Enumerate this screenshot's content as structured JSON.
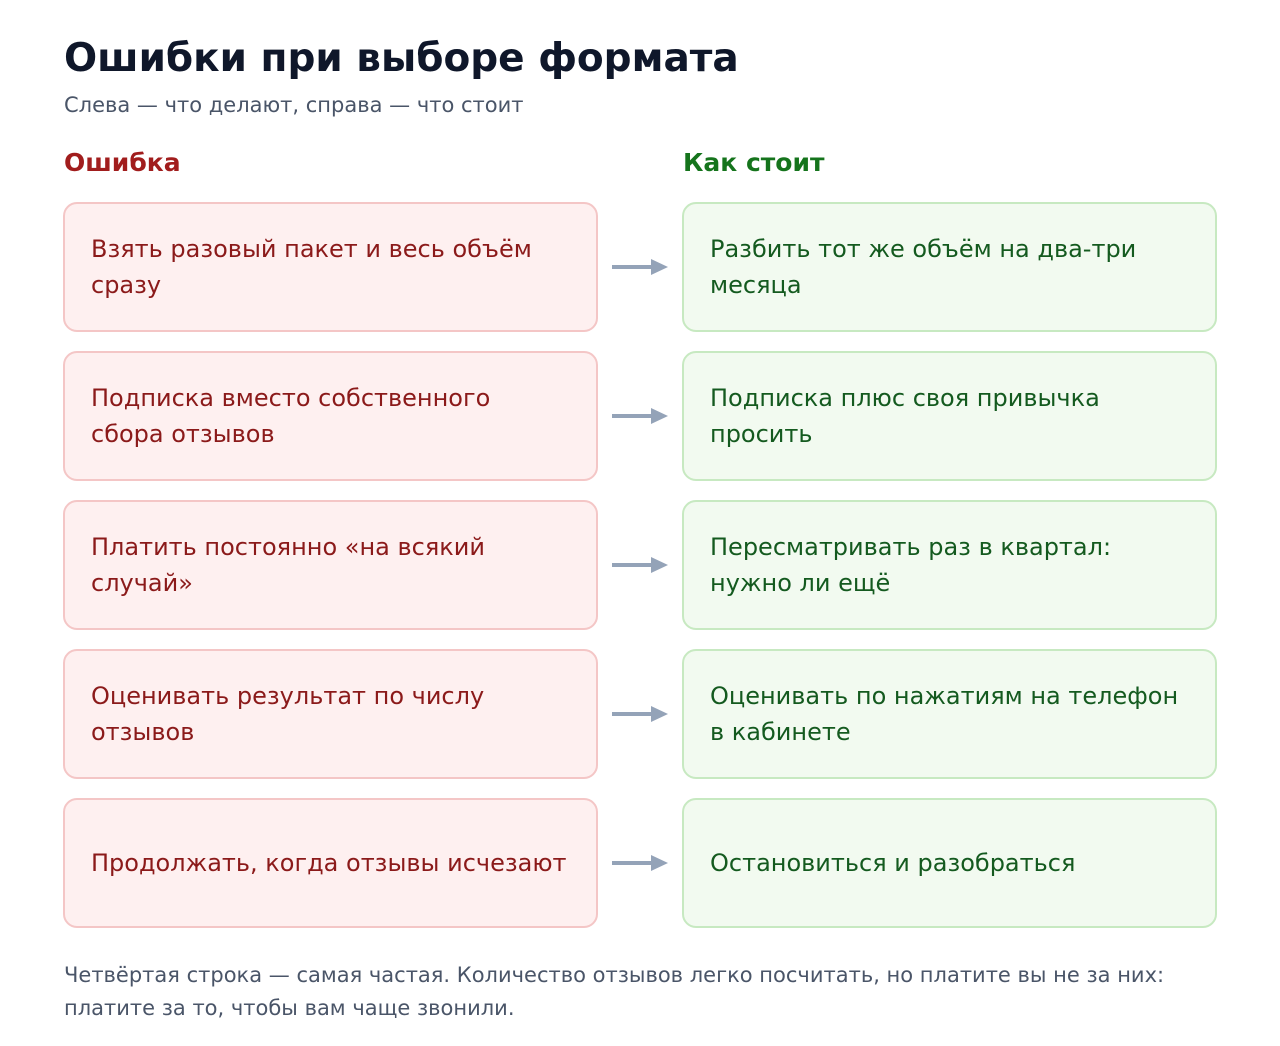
{
  "header": {
    "title": "Ошибки при выборе формата",
    "subtitle": "Слева — что делают, справа — что стоит"
  },
  "columns": {
    "mistake_heading": "Ошибка",
    "fix_heading": "Как стоит"
  },
  "rows": [
    {
      "mistake": "Взять разовый пакет и весь объём сразу",
      "fix": "Разбить тот же объём на два-три месяца"
    },
    {
      "mistake": "Подписка вместо собственного сбора отзывов",
      "fix": "Подписка плюс своя привычка просить"
    },
    {
      "mistake": "Платить постоянно «на всякий случай»",
      "fix": "Пересматривать раз в квартал: нужно ли ещё"
    },
    {
      "mistake": "Оценивать результат по числу отзывов",
      "fix": "Оценивать по нажатиям на телефон в кабинете"
    },
    {
      "mistake": "Продолжать, когда отзывы исчезают",
      "fix": "Остановиться и разобраться"
    }
  ],
  "footnote": "Четвёртая строка — самая частая. Количество отзывов легко посчитать, но платите вы не за них: платите за то, чтобы вам чаще звонили.",
  "colors": {
    "mistake_text": "#8b1a1a",
    "mistake_bg": "#fef0f0",
    "mistake_border": "#f4c6c6",
    "fix_text": "#145a1f",
    "fix_bg": "#f2faf0",
    "fix_border": "#c7e9c1",
    "arrow": "#94a3b8"
  },
  "icons": {
    "connector": "arrow-right-icon"
  }
}
